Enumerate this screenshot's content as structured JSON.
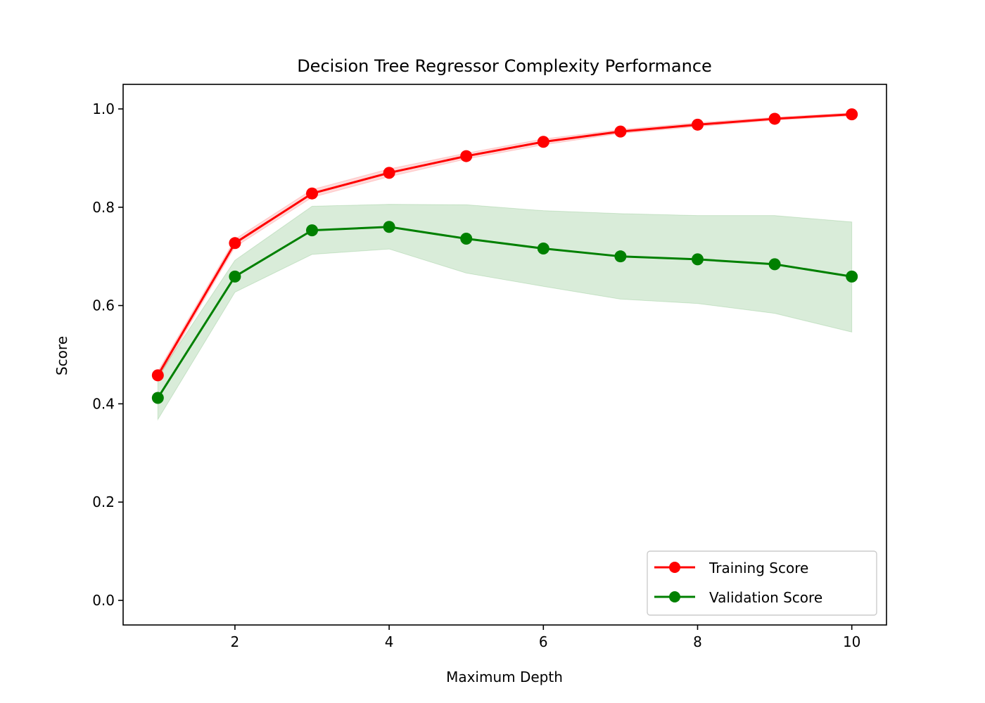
{
  "chart_data": {
    "type": "line",
    "title": "Decision Tree Regressor Complexity Performance",
    "xlabel": "Maximum Depth",
    "ylabel": "Score",
    "xlim": [
      0.55,
      10.45
    ],
    "ylim": [
      -0.05,
      1.05
    ],
    "xticks": [
      2,
      4,
      6,
      8,
      10
    ],
    "xtick_labels": [
      "2",
      "4",
      "6",
      "8",
      "10"
    ],
    "yticks": [
      0.0,
      0.2,
      0.4,
      0.6,
      0.8,
      1.0
    ],
    "ytick_labels": [
      "0.0",
      "0.2",
      "0.4",
      "0.6",
      "0.8",
      "1.0"
    ],
    "grid": false,
    "legend_position": "lower-right",
    "x": [
      1,
      2,
      3,
      4,
      5,
      6,
      7,
      8,
      9,
      10
    ],
    "series": [
      {
        "name": "Training Score",
        "color": "#ff0000",
        "values": [
          0.458,
          0.727,
          0.828,
          0.87,
          0.904,
          0.933,
          0.954,
          0.968,
          0.98,
          0.989
        ],
        "band_lower": [
          0.45,
          0.719,
          0.82,
          0.862,
          0.898,
          0.927,
          0.95,
          0.964,
          0.977,
          0.986
        ],
        "band_upper": [
          0.466,
          0.735,
          0.836,
          0.878,
          0.91,
          0.939,
          0.958,
          0.972,
          0.983,
          0.992
        ]
      },
      {
        "name": "Validation Score",
        "color": "#008000",
        "values": [
          0.412,
          0.659,
          0.753,
          0.76,
          0.736,
          0.716,
          0.7,
          0.694,
          0.684,
          0.659
        ],
        "band_lower": [
          0.368,
          0.627,
          0.704,
          0.715,
          0.666,
          0.639,
          0.613,
          0.604,
          0.584,
          0.546
        ],
        "band_upper": [
          0.456,
          0.692,
          0.802,
          0.806,
          0.805,
          0.793,
          0.787,
          0.783,
          0.783,
          0.77
        ]
      }
    ]
  }
}
